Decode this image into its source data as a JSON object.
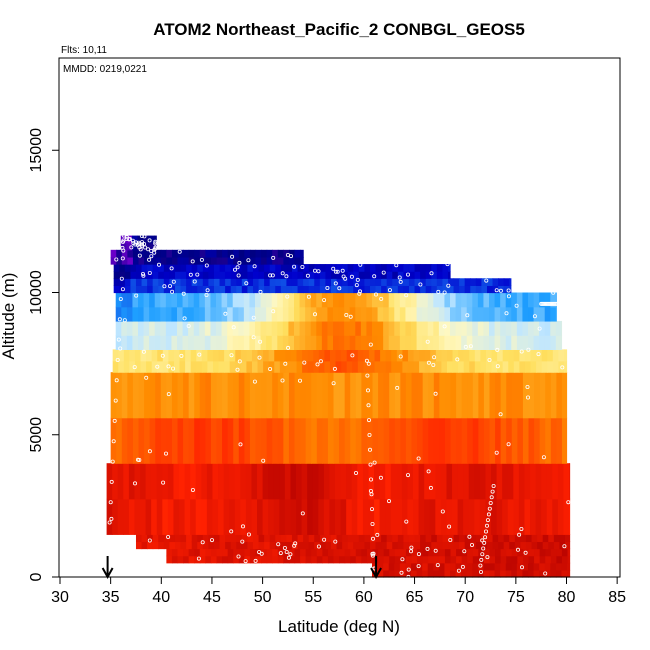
{
  "chart_data": {
    "type": "heatmap",
    "title": "ATOM2 Northeast_Pacific_2 CONBGL_GEOS5",
    "annotations": [
      "Flts: 10,11",
      "MMDD: 0219,0221"
    ],
    "xlabel": "Latitude (deg N)",
    "ylabel": "Altitude (m)",
    "xlim": [
      30,
      85
    ],
    "ylim": [
      0,
      18000
    ],
    "xticks": [
      30,
      35,
      40,
      45,
      50,
      55,
      60,
      65,
      70,
      75,
      80,
      85
    ],
    "yticks": [
      0,
      5000,
      10000,
      15000
    ],
    "markers": {
      "description": "downward arrows at the bottom",
      "latitudes": [
        34.7,
        61.2
      ]
    },
    "colors": {
      "dark_red": "#b00000",
      "red": "#ff2000",
      "orange": "#ff8c00",
      "yellow": "#ffe060",
      "pale_yellow": "#fff8c0",
      "light_blue": "#bfe6ff",
      "sky_blue": "#1e9fff",
      "blue": "#0000cd",
      "navy": "#000080",
      "purple": "#6a00c8",
      "points": "#ffffff"
    },
    "layers": [
      {
        "alt_bottom": 0,
        "alt_top": 500,
        "lat_start": 60.8,
        "lat_end": 80.3
      },
      {
        "alt_bottom": 500,
        "alt_top": 1000,
        "lat_start": 40.5,
        "lat_end": 80.3
      },
      {
        "alt_bottom": 1000,
        "alt_top": 1500,
        "lat_start": 37.5,
        "lat_end": 80.3
      },
      {
        "alt_bottom": 1500,
        "alt_top": 4000,
        "lat_start": 34.6,
        "lat_end": 80.3
      },
      {
        "alt_bottom": 4000,
        "alt_top": 7200,
        "lat_start": 35.0,
        "lat_end": 80.0
      },
      {
        "alt_bottom": 7200,
        "alt_top": 8000,
        "lat_start": 35.2,
        "lat_end": 80.0
      },
      {
        "alt_bottom": 8000,
        "alt_top": 9000,
        "lat_start": 35.5,
        "lat_end": 79.5
      },
      {
        "alt_bottom": 9000,
        "alt_top": 10000,
        "lat_start": 35.5,
        "lat_end": 79.0
      },
      {
        "alt_bottom": 10000,
        "alt_top": 10500,
        "lat_start": 35.3,
        "lat_end": 74.5
      },
      {
        "alt_bottom": 10500,
        "alt_top": 11000,
        "lat_start": 35.3,
        "lat_end": 68.5
      },
      {
        "alt_bottom": 11000,
        "alt_top": 11500,
        "lat_start": 35.0,
        "lat_end": 54.0
      },
      {
        "alt_bottom": 11500,
        "alt_top": 12000,
        "lat_start": 36.0,
        "lat_end": 39.5
      }
    ]
  }
}
